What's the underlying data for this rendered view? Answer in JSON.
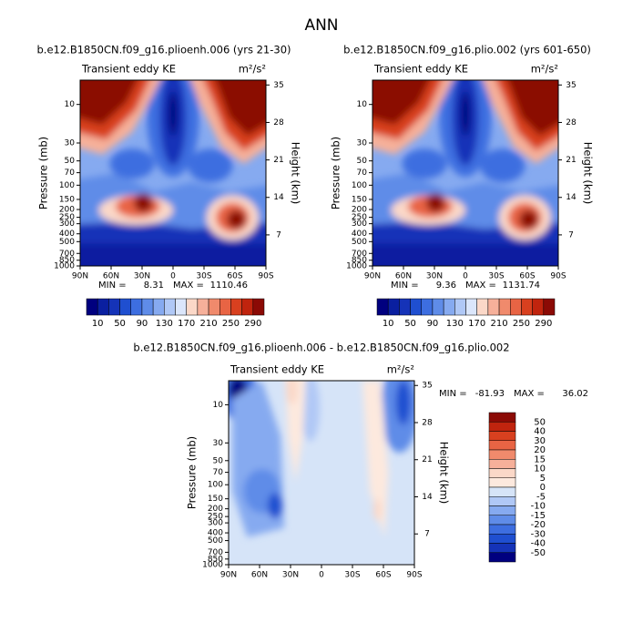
{
  "title": "ANN",
  "axes": {
    "ylabel": "Pressure (mb)",
    "y2label": "Height (km)",
    "ylim": [
      1000,
      5
    ],
    "log_y": true,
    "yticks": [
      10,
      30,
      50,
      70,
      100,
      150,
      200,
      250,
      300,
      400,
      500,
      700,
      850,
      1000
    ],
    "y2lim": [
      1.2,
      35.9
    ],
    "y2ticks": [
      7,
      14,
      21,
      28,
      35
    ],
    "xlim": [
      90,
      -90
    ],
    "xticks": [
      {
        "value": 90,
        "label": "90N"
      },
      {
        "value": 60,
        "label": "60N"
      },
      {
        "value": 30,
        "label": "30N"
      },
      {
        "value": 0,
        "label": "0"
      },
      {
        "value": -30,
        "label": "30S"
      },
      {
        "value": -60,
        "label": "60S"
      },
      {
        "value": -90,
        "label": "90S"
      }
    ]
  },
  "panels": [
    {
      "title": "b.e12.B1850CN.f09_g16.plioenh.006 (yrs 21-30)",
      "left_label": "Transient eddy KE",
      "units": "m²/s²",
      "min_label": "MIN =",
      "min": 8.31,
      "max_label": "MAX =",
      "max": 1110.46
    },
    {
      "title": "b.e12.B1850CN.f09_g16.plio.002 (yrs 601-650)",
      "left_label": "Transient eddy KE",
      "units": "m²/s²",
      "min_label": "MIN =",
      "min": 9.36,
      "max_label": "MAX =",
      "max": 1131.74
    },
    {
      "title": "b.e12.B1850CN.f09_g16.plioenh.006 - b.e12.B1850CN.f09_g16.plio.002",
      "left_label": "Transient eddy KE",
      "units": "m²/s²",
      "min_label": "MIN =",
      "min": -81.93,
      "max_label": "MAX =",
      "max": 36.02
    }
  ],
  "colorbar_top": {
    "labels": [
      10,
      50,
      90,
      130,
      170,
      210,
      250,
      290
    ],
    "colors": [
      "#00007f",
      "#0a1fa0",
      "#1533b8",
      "#1f4fd0",
      "#3d6ee0",
      "#5f8ce8",
      "#86aaf0",
      "#b0c8f6",
      "#dbe6fb",
      "#fbd8c8",
      "#f6b09a",
      "#f08a6c",
      "#e86444",
      "#d8401f",
      "#c0240e",
      "#8b0a05"
    ]
  },
  "colorbar_diff": {
    "labels": [
      50,
      40,
      30,
      20,
      15,
      10,
      5,
      0,
      -5,
      -10,
      -15,
      -20,
      -30,
      -40,
      -50
    ],
    "colors": [
      "#8b0a05",
      "#c0240e",
      "#d8401f",
      "#e86444",
      "#f08a6c",
      "#f6b09a",
      "#fbd8c8",
      "#fde9de",
      "#d6e4f8",
      "#b0c8f6",
      "#86aaf0",
      "#5f8ce8",
      "#3d6ee0",
      "#1f4fd0",
      "#1533b8",
      "#00007f"
    ]
  }
}
